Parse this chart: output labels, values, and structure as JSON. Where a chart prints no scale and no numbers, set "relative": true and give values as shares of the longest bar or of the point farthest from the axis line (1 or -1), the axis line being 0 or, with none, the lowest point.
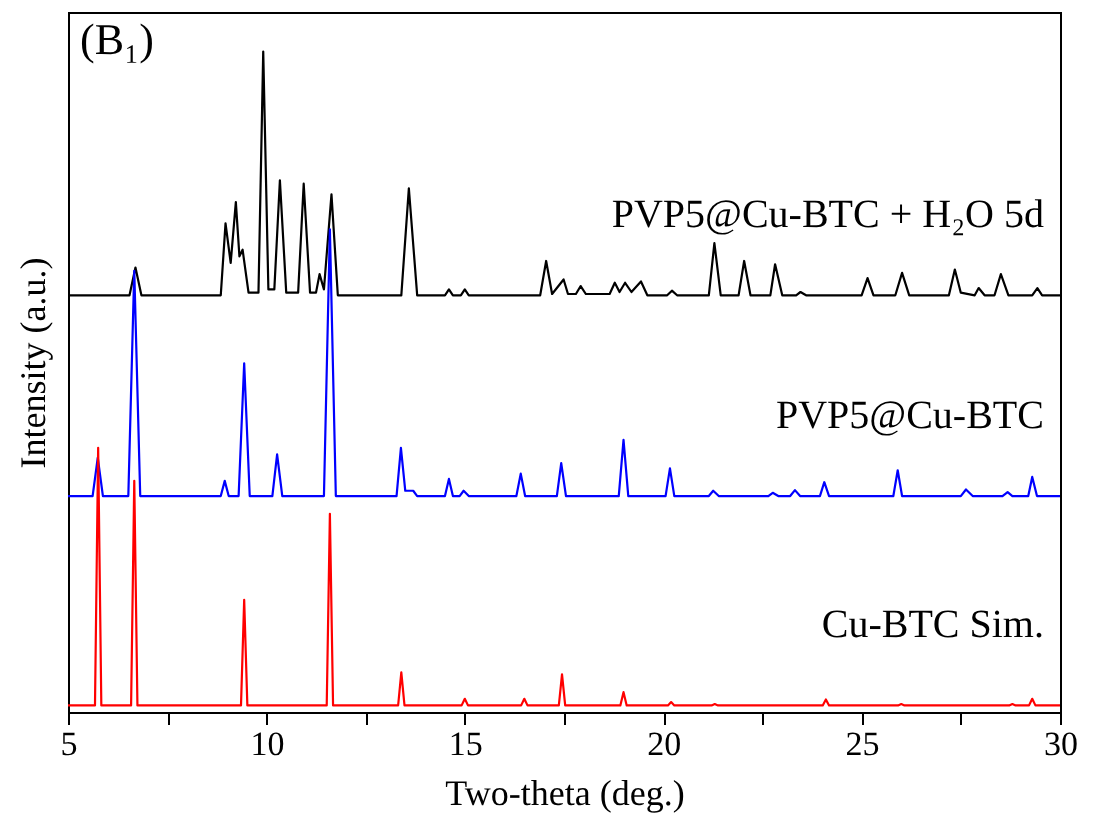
{
  "chart_data": {
    "type": "line",
    "title": "(B₁)",
    "xlabel": "Two-theta (deg.)",
    "ylabel": "Intensity (a.u.)",
    "relative": true,
    "xlim": [
      5,
      30
    ],
    "xticks": [
      5,
      {
        "value": 7.5,
        "label": null
      },
      10,
      {
        "value": 12.5,
        "label": null
      },
      15,
      {
        "value": 17.5,
        "label": null
      },
      20,
      {
        "value": 22.5,
        "label": null
      },
      25,
      {
        "value": 27.5,
        "label": null
      },
      30
    ],
    "grid": false,
    "legend": false,
    "marker": "none",
    "line_style": "solid",
    "series": [
      {
        "name": "PVP5@Cu-BTC + H₂O 5d",
        "color": "#000000",
        "x": [
          5,
          6.55,
          6.7,
          6.85,
          8.85,
          8.97,
          9.1,
          9.23,
          9.32,
          9.4,
          9.55,
          9.8,
          9.92,
          10.05,
          10.2,
          10.34,
          10.5,
          10.8,
          10.94,
          11.1,
          11.25,
          11.34,
          11.45,
          11.64,
          11.8,
          13.4,
          13.59,
          13.8,
          14.5,
          14.6,
          14.7,
          14.9,
          15.0,
          15.1,
          16.9,
          17.05,
          17.2,
          17.49,
          17.6,
          17.8,
          17.92,
          18.05,
          18.65,
          18.78,
          18.9,
          19.04,
          19.2,
          19.44,
          19.6,
          20.1,
          20.22,
          20.35,
          21.15,
          21.29,
          21.45,
          21.9,
          22.04,
          22.2,
          22.7,
          22.82,
          23.0,
          23.35,
          23.46,
          23.6,
          25.0,
          25.15,
          25.3,
          25.85,
          26.02,
          26.2,
          27.2,
          27.35,
          27.5,
          27.85,
          27.95,
          28.1,
          28.35,
          28.51,
          28.7,
          29.3,
          29.43,
          29.55,
          30
        ],
        "values": [
          0.631,
          0.631,
          0.673,
          0.631,
          0.631,
          0.74,
          0.68,
          0.772,
          0.69,
          0.7,
          0.635,
          0.635,
          1.0,
          0.64,
          0.64,
          0.805,
          0.635,
          0.635,
          0.8,
          0.635,
          0.635,
          0.663,
          0.64,
          0.784,
          0.631,
          0.631,
          0.793,
          0.631,
          0.631,
          0.64,
          0.631,
          0.631,
          0.64,
          0.631,
          0.631,
          0.683,
          0.633,
          0.655,
          0.633,
          0.633,
          0.645,
          0.633,
          0.633,
          0.65,
          0.636,
          0.65,
          0.636,
          0.652,
          0.631,
          0.631,
          0.638,
          0.631,
          0.631,
          0.71,
          0.631,
          0.631,
          0.683,
          0.631,
          0.631,
          0.678,
          0.631,
          0.631,
          0.636,
          0.631,
          0.631,
          0.657,
          0.631,
          0.631,
          0.665,
          0.631,
          0.631,
          0.67,
          0.635,
          0.631,
          0.642,
          0.631,
          0.631,
          0.663,
          0.631,
          0.631,
          0.642,
          0.631,
          0.631
        ]
      },
      {
        "name": "PVP5@Cu-BTC",
        "color": "#0000ff",
        "x": [
          5,
          5.62,
          5.75,
          5.88,
          6.52,
          6.67,
          6.82,
          8.85,
          8.95,
          9.05,
          9.3,
          9.44,
          9.58,
          10.15,
          10.27,
          10.4,
          11.45,
          11.6,
          11.75,
          13.28,
          13.39,
          13.5,
          13.7,
          13.8,
          14.5,
          14.6,
          14.7,
          14.87,
          14.97,
          15.1,
          16.3,
          16.41,
          16.52,
          17.32,
          17.43,
          17.55,
          18.88,
          19.0,
          19.12,
          20.06,
          20.17,
          20.28,
          21.15,
          21.26,
          21.4,
          22.65,
          22.76,
          22.9,
          23.2,
          23.32,
          23.45,
          23.95,
          24.06,
          24.18,
          25.8,
          25.91,
          26.02,
          27.5,
          27.63,
          27.8,
          28.55,
          28.68,
          28.8,
          29.2,
          29.3,
          29.42,
          30
        ],
        "values": [
          0.327,
          0.327,
          0.385,
          0.327,
          0.327,
          0.668,
          0.327,
          0.327,
          0.35,
          0.327,
          0.327,
          0.528,
          0.327,
          0.327,
          0.39,
          0.327,
          0.327,
          0.731,
          0.327,
          0.327,
          0.4,
          0.335,
          0.335,
          0.327,
          0.327,
          0.353,
          0.327,
          0.327,
          0.335,
          0.327,
          0.327,
          0.361,
          0.327,
          0.327,
          0.377,
          0.327,
          0.327,
          0.412,
          0.327,
          0.327,
          0.369,
          0.327,
          0.327,
          0.335,
          0.327,
          0.327,
          0.332,
          0.327,
          0.327,
          0.336,
          0.327,
          0.327,
          0.348,
          0.327,
          0.327,
          0.366,
          0.327,
          0.327,
          0.337,
          0.327,
          0.327,
          0.333,
          0.327,
          0.327,
          0.356,
          0.327,
          0.327
        ]
      },
      {
        "name": "Cu-BTC  Sim.",
        "color": "#ff0000",
        "x": [
          5,
          5.68,
          5.76,
          5.84,
          6.59,
          6.67,
          6.75,
          9.36,
          9.44,
          9.52,
          11.52,
          11.6,
          11.68,
          13.32,
          13.4,
          13.48,
          14.92,
          15.0,
          15.08,
          16.42,
          16.5,
          16.58,
          17.37,
          17.45,
          17.53,
          18.92,
          19.0,
          19.08,
          20.12,
          20.2,
          20.28,
          21.22,
          21.3,
          21.38,
          24.02,
          24.1,
          24.18,
          25.92,
          26.0,
          26.08,
          28.72,
          28.8,
          28.88,
          29.22,
          29.3,
          29.38,
          30
        ],
        "values": [
          0.01,
          0.01,
          0.4,
          0.01,
          0.01,
          0.35,
          0.01,
          0.01,
          0.17,
          0.01,
          0.01,
          0.3,
          0.01,
          0.01,
          0.06,
          0.01,
          0.01,
          0.02,
          0.01,
          0.01,
          0.02,
          0.01,
          0.01,
          0.057,
          0.01,
          0.01,
          0.03,
          0.01,
          0.01,
          0.015,
          0.01,
          0.01,
          0.012,
          0.01,
          0.01,
          0.019,
          0.01,
          0.01,
          0.012,
          0.01,
          0.01,
          0.012,
          0.01,
          0.01,
          0.02,
          0.01,
          0.01
        ]
      }
    ]
  }
}
